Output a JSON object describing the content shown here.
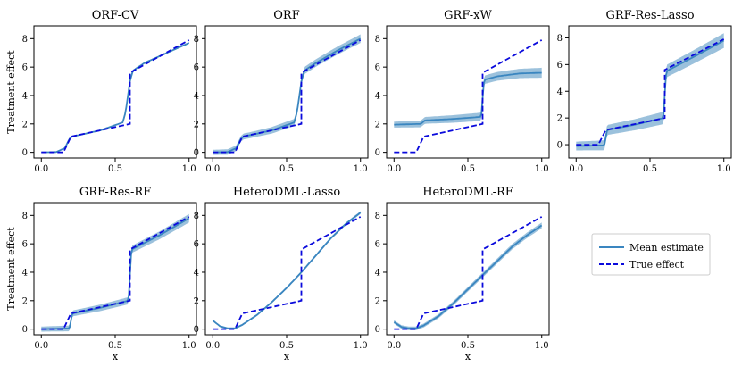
{
  "colors": {
    "mean": "#3a86c0",
    "band": "#8ab6d6",
    "true_effect": "#0a0adc",
    "axis": "#000000"
  },
  "legend": {
    "entries": [
      "Mean estimate",
      "True effect"
    ]
  },
  "chart_data": [
    {
      "type": "line",
      "title": "ORF-CV",
      "xlabel": "",
      "ylabel": "Treatment effect",
      "xlim": [
        -0.05,
        1.05
      ],
      "ylim": [
        -0.4,
        8.9
      ],
      "xticks": [
        0.0,
        0.5,
        1.0
      ],
      "xticklabels": [
        "0.0",
        "0.5",
        "1.0"
      ],
      "yticks": [
        0,
        2,
        4,
        6,
        8
      ],
      "yticklabels": [
        "0",
        "2",
        "4",
        "6",
        "8"
      ],
      "true_effect": {
        "x": [
          0,
          0.15,
          0.2,
          0.2,
          0.6,
          0.6,
          1.0
        ],
        "y": [
          0,
          0,
          1.1,
          1.1,
          2.0,
          5.6,
          7.9
        ]
      },
      "mean": {
        "x": [
          0,
          0.1,
          0.16,
          0.19,
          0.21,
          0.25,
          0.4,
          0.55,
          0.57,
          0.6,
          0.62,
          0.7,
          0.85,
          1.0
        ],
        "y": [
          0.0,
          0.02,
          0.3,
          0.95,
          1.12,
          1.2,
          1.55,
          2.1,
          2.8,
          5.0,
          5.75,
          6.3,
          7.0,
          7.7
        ]
      },
      "band_width": 0.05
    },
    {
      "type": "line",
      "title": "ORF",
      "xlabel": "",
      "ylabel": "",
      "xlim": [
        -0.05,
        1.05
      ],
      "ylim": [
        -0.4,
        8.9
      ],
      "xticks": [
        0.0,
        0.5,
        1.0
      ],
      "xticklabels": [
        "0.0",
        "0.5",
        "1.0"
      ],
      "yticks": [
        0,
        2,
        4,
        6,
        8
      ],
      "yticklabels": [
        "0",
        "2",
        "4",
        "6",
        "8"
      ],
      "true_effect": {
        "x": [
          0,
          0.15,
          0.2,
          0.2,
          0.6,
          0.6,
          1.0
        ],
        "y": [
          0,
          0,
          1.1,
          1.1,
          2.0,
          5.6,
          7.9
        ]
      },
      "mean": {
        "x": [
          0,
          0.1,
          0.16,
          0.19,
          0.21,
          0.25,
          0.4,
          0.55,
          0.57,
          0.6,
          0.62,
          0.7,
          0.85,
          1.0
        ],
        "y": [
          0.0,
          0.02,
          0.3,
          0.95,
          1.12,
          1.2,
          1.55,
          2.1,
          2.8,
          5.0,
          5.75,
          6.3,
          7.2,
          8.0
        ]
      },
      "band_width": 0.3
    },
    {
      "type": "line",
      "title": "GRF-xW",
      "xlabel": "",
      "ylabel": "",
      "xlim": [
        -0.05,
        1.05
      ],
      "ylim": [
        -0.4,
        8.9
      ],
      "xticks": [
        0.0,
        0.5,
        1.0
      ],
      "xticklabels": [
        "0.0",
        "0.5",
        "1.0"
      ],
      "yticks": [
        0,
        2,
        4,
        6,
        8
      ],
      "yticklabels": [
        "0",
        "2",
        "4",
        "6",
        "8"
      ],
      "true_effect": {
        "x": [
          0,
          0.15,
          0.2,
          0.2,
          0.6,
          0.6,
          1.0
        ],
        "y": [
          0,
          0,
          1.1,
          1.1,
          2.0,
          5.6,
          7.9
        ]
      },
      "mean": {
        "x": [
          0,
          0.18,
          0.21,
          0.4,
          0.59,
          0.61,
          0.7,
          0.85,
          1.0
        ],
        "y": [
          1.95,
          2.0,
          2.25,
          2.35,
          2.5,
          5.1,
          5.35,
          5.55,
          5.6
        ]
      },
      "band_width": 0.35
    },
    {
      "type": "line",
      "title": "GRF-Res-Lasso",
      "xlabel": "",
      "ylabel": "",
      "xlim": [
        -0.05,
        1.05
      ],
      "ylim": [
        -1.0,
        8.9
      ],
      "xticks": [
        0.0,
        0.5,
        1.0
      ],
      "xticklabels": [
        "0.0",
        "0.5",
        "1.0"
      ],
      "yticks": [
        0,
        2,
        4,
        6,
        8
      ],
      "yticklabels": [
        "0",
        "2",
        "4",
        "6",
        "8"
      ],
      "true_effect": {
        "x": [
          0,
          0.15,
          0.2,
          0.2,
          0.6,
          0.6,
          1.0
        ],
        "y": [
          0,
          0,
          1.1,
          1.1,
          2.0,
          5.6,
          7.9
        ]
      },
      "mean": {
        "x": [
          0,
          0.19,
          0.21,
          0.4,
          0.59,
          0.61,
          0.8,
          1.0
        ],
        "y": [
          -0.1,
          -0.05,
          1.1,
          1.5,
          2.0,
          5.5,
          6.6,
          7.8
        ]
      },
      "band_width": 0.55
    },
    {
      "type": "line",
      "title": "GRF-Res-RF",
      "xlabel": "x",
      "ylabel": "Treatment effect",
      "xlim": [
        -0.05,
        1.05
      ],
      "ylim": [
        -0.4,
        8.9
      ],
      "xticks": [
        0.0,
        0.5,
        1.0
      ],
      "xticklabels": [
        "0.0",
        "0.5",
        "1.0"
      ],
      "yticks": [
        0,
        2,
        4,
        6,
        8
      ],
      "yticklabels": [
        "0",
        "2",
        "4",
        "6",
        "8"
      ],
      "true_effect": {
        "x": [
          0,
          0.15,
          0.2,
          0.2,
          0.6,
          0.6,
          1.0
        ],
        "y": [
          0,
          0,
          1.1,
          1.1,
          2.0,
          5.6,
          7.9
        ]
      },
      "mean": {
        "x": [
          0,
          0.19,
          0.21,
          0.4,
          0.59,
          0.61,
          0.8,
          1.0
        ],
        "y": [
          0.0,
          0.05,
          1.1,
          1.5,
          2.0,
          5.6,
          6.6,
          7.8
        ]
      },
      "band_width": 0.3
    },
    {
      "type": "line",
      "title": "HeteroDML-Lasso",
      "xlabel": "x",
      "ylabel": "",
      "xlim": [
        -0.05,
        1.05
      ],
      "ylim": [
        -0.4,
        8.9
      ],
      "xticks": [
        0.0,
        0.5,
        1.0
      ],
      "xticklabels": [
        "0.0",
        "0.5",
        "1.0"
      ],
      "yticks": [
        0,
        2,
        4,
        6,
        8
      ],
      "yticklabels": [
        "0",
        "2",
        "4",
        "6",
        "8"
      ],
      "true_effect": {
        "x": [
          0,
          0.15,
          0.2,
          0.2,
          0.6,
          0.6,
          1.0
        ],
        "y": [
          0,
          0,
          1.1,
          1.1,
          2.0,
          5.6,
          7.9
        ]
      },
      "mean": {
        "x": [
          0,
          0.05,
          0.1,
          0.15,
          0.2,
          0.3,
          0.4,
          0.5,
          0.6,
          0.7,
          0.8,
          0.9,
          1.0
        ],
        "y": [
          0.6,
          0.2,
          0.05,
          0.05,
          0.3,
          1.0,
          1.9,
          2.9,
          4.0,
          5.2,
          6.4,
          7.4,
          8.2
        ]
      },
      "band_width": 0.1
    },
    {
      "type": "line",
      "title": "HeteroDML-RF",
      "xlabel": "x",
      "ylabel": "",
      "xlim": [
        -0.05,
        1.05
      ],
      "ylim": [
        -0.4,
        8.9
      ],
      "xticks": [
        0.0,
        0.5,
        1.0
      ],
      "xticklabels": [
        "0.0",
        "0.5",
        "1.0"
      ],
      "yticks": [
        0,
        2,
        4,
        6,
        8
      ],
      "yticklabels": [
        "0",
        "2",
        "4",
        "6",
        "8"
      ],
      "true_effect": {
        "x": [
          0,
          0.15,
          0.2,
          0.2,
          0.6,
          0.6,
          1.0
        ],
        "y": [
          0,
          0,
          1.1,
          1.1,
          2.0,
          5.6,
          7.9
        ]
      },
      "mean": {
        "x": [
          0,
          0.05,
          0.1,
          0.15,
          0.2,
          0.3,
          0.4,
          0.5,
          0.6,
          0.7,
          0.8,
          0.9,
          1.0
        ],
        "y": [
          0.5,
          0.15,
          0.05,
          0.05,
          0.25,
          0.9,
          1.8,
          2.8,
          3.8,
          4.8,
          5.8,
          6.6,
          7.3
        ]
      },
      "band_width": 0.2
    }
  ]
}
